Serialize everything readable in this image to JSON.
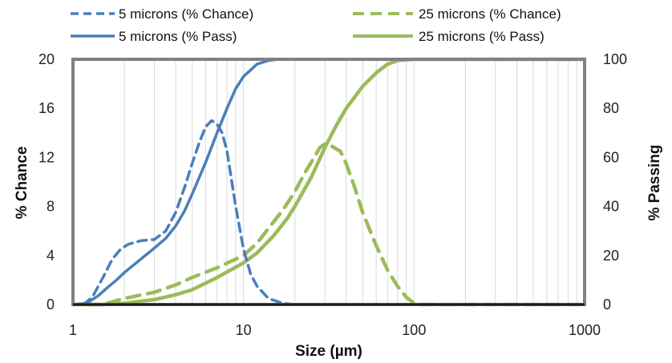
{
  "chart_data": {
    "type": "line",
    "xlabel": "Size (µm)",
    "ylabel_left": "% Chance",
    "ylabel_right": "% Passing",
    "x_scale": "log",
    "xlim": [
      1,
      1000
    ],
    "ylim_left": [
      0,
      20
    ],
    "ylim_right": [
      0,
      100
    ],
    "x_ticks": [
      1,
      10,
      100,
      1000
    ],
    "x_tick_labels": [
      "1",
      "10",
      "100",
      "1000"
    ],
    "y_left_ticks": [
      0,
      4,
      8,
      12,
      16,
      20
    ],
    "y_left_tick_labels": [
      "0",
      "4",
      "8",
      "12",
      "16",
      "20"
    ],
    "y_right_ticks": [
      0,
      20,
      40,
      60,
      80,
      100
    ],
    "y_right_tick_labels": [
      "0",
      "20",
      "40",
      "60",
      "80",
      "100"
    ],
    "grid": "vertical minor (log decades)",
    "legend": "top, two columns",
    "series": [
      {
        "name": "5 microns (% Chance)",
        "axis": "left",
        "style": "dashed",
        "color": "#4a7ebb",
        "x": [
          1.15,
          1.3,
          1.5,
          1.7,
          1.9,
          2.1,
          2.5,
          3.0,
          3.5,
          4.0,
          4.5,
          5.0,
          5.5,
          6.0,
          6.5,
          7.0,
          7.5,
          8.0,
          9.0,
          10.0,
          11.0,
          12.0,
          14.0,
          17.0,
          20.0,
          25.0,
          40.0,
          100.0,
          1000.0
        ],
        "values": [
          0.0,
          0.6,
          2.2,
          3.7,
          4.5,
          4.9,
          5.2,
          5.3,
          6.0,
          7.5,
          9.5,
          11.5,
          13.2,
          14.5,
          15.0,
          14.7,
          14.0,
          12.5,
          8.0,
          4.5,
          2.5,
          1.5,
          0.5,
          0.1,
          0.0,
          0.0,
          0.0,
          0.0,
          0.0
        ]
      },
      {
        "name": "5 microns (% Pass)",
        "axis": "right",
        "color": "#4a7ebb",
        "x": [
          1.0,
          1.2,
          1.4,
          1.6,
          1.8,
          2.0,
          2.5,
          3.0,
          3.5,
          4.0,
          4.5,
          5.0,
          6.0,
          7.0,
          8.0,
          9.0,
          10.0,
          12.0,
          14.0,
          16.0,
          20.0,
          30.0,
          100.0,
          1000.0
        ],
        "values": [
          0.0,
          0.5,
          3.5,
          7.0,
          10.0,
          13.0,
          18.5,
          23.0,
          27.0,
          32.0,
          38.0,
          45.0,
          58.0,
          70.0,
          80.0,
          88.0,
          93.0,
          98.0,
          99.5,
          100.0,
          100.0,
          100.0,
          100.0,
          100.0
        ]
      },
      {
        "name": "25 microns (% Chance)",
        "axis": "left",
        "style": "dashed",
        "color": "#9bbb59",
        "x": [
          1.2,
          1.5,
          2.0,
          3.0,
          4.0,
          5.0,
          7.0,
          10.0,
          12.0,
          14.0,
          17.0,
          20.0,
          23.0,
          26.0,
          28.0,
          30.0,
          33.0,
          37.0,
          40.0,
          45.0,
          50.0,
          60.0,
          70.0,
          80.0,
          90.0,
          100.0,
          110.0,
          1000.0
        ],
        "values": [
          0.0,
          0.0,
          0.5,
          1.0,
          1.6,
          2.2,
          3.0,
          4.0,
          5.0,
          6.2,
          7.7,
          9.2,
          10.8,
          12.0,
          12.8,
          13.1,
          12.9,
          12.5,
          11.5,
          9.5,
          7.5,
          4.8,
          2.8,
          1.5,
          0.6,
          0.1,
          0.0,
          0.0
        ]
      },
      {
        "name": "25 microns (% Pass)",
        "axis": "right",
        "color": "#9bbb59",
        "x": [
          1.0,
          1.5,
          2.0,
          3.0,
          4.0,
          5.0,
          7.0,
          10.0,
          12.0,
          15.0,
          18.0,
          20.0,
          25.0,
          30.0,
          35.0,
          40.0,
          50.0,
          60.0,
          70.0,
          80.0,
          100.0,
          150.0,
          1000.0
        ],
        "values": [
          0.0,
          0.0,
          0.5,
          2.0,
          4.0,
          6.0,
          11.0,
          17.0,
          21.0,
          28.0,
          35.0,
          40.0,
          52.0,
          64.0,
          73.0,
          80.0,
          89.0,
          94.5,
          98.0,
          99.5,
          100.0,
          100.0,
          100.0
        ]
      }
    ]
  },
  "legend": [
    {
      "label": "5 microns (% Chance)",
      "color": "#4a7ebb",
      "style": "dashed"
    },
    {
      "label": "25 microns (% Chance)",
      "color": "#9bbb59",
      "style": "dashed"
    },
    {
      "label": "5 microns (% Pass)",
      "color": "#4a7ebb",
      "style": "solid"
    },
    {
      "label": "25 microns (% Pass)",
      "color": "#9bbb59",
      "style": "solid"
    }
  ]
}
